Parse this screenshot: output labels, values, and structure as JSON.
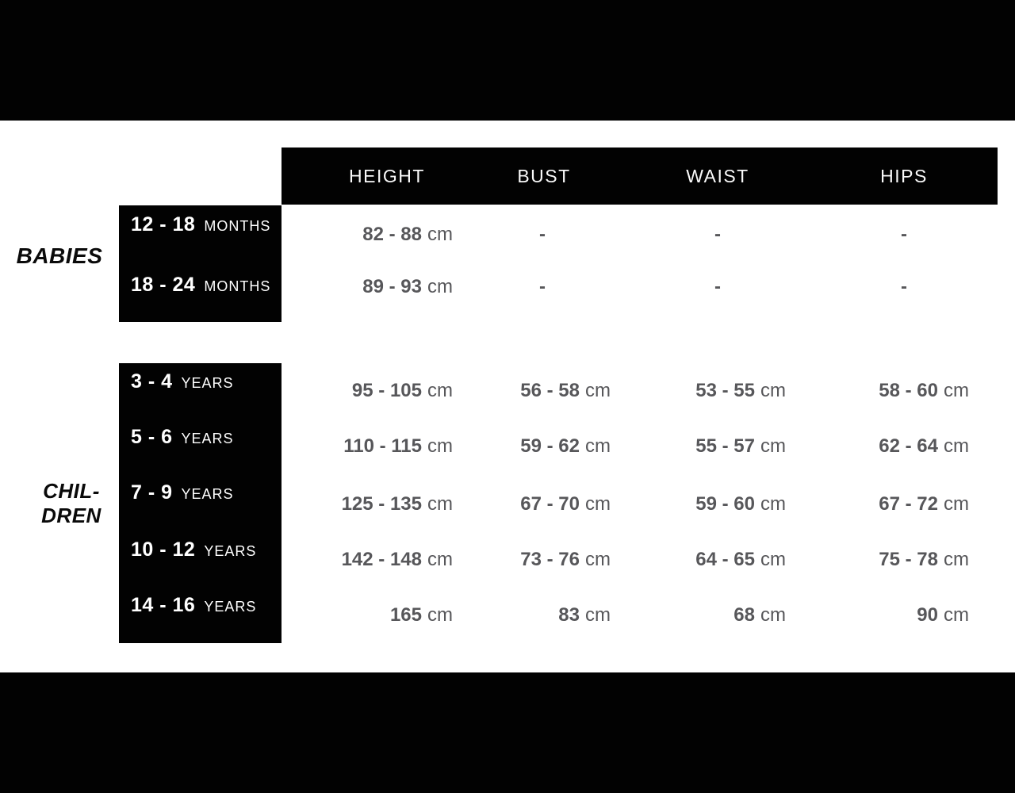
{
  "chart_data": {
    "type": "table",
    "columns": [
      "HEIGHT",
      "BUST",
      "WAIST",
      "HIPS"
    ],
    "measurement_unit": "cm",
    "groups": [
      {
        "group_label": "BABIES",
        "age_unit": "MONTHS",
        "rows": [
          {
            "age": "12 - 18",
            "age_unit": "MONTHS",
            "height": "82 - 88",
            "height_unit": "cm",
            "bust": "-",
            "bust_unit": "",
            "waist": "-",
            "waist_unit": "",
            "hips": "-",
            "hips_unit": ""
          },
          {
            "age": "18 - 24",
            "age_unit": "MONTHS",
            "height": "89 - 93",
            "height_unit": "cm",
            "bust": "-",
            "bust_unit": "",
            "waist": "-",
            "waist_unit": "",
            "hips": "-",
            "hips_unit": ""
          }
        ]
      },
      {
        "group_label_line1": "CHIL-",
        "group_label_line2": "DREN",
        "age_unit": "YEARS",
        "rows": [
          {
            "age": "3 - 4",
            "age_unit": "YEARS",
            "height": "95 - 105",
            "height_unit": "cm",
            "bust": "56 - 58",
            "bust_unit": "cm",
            "waist": "53 - 55",
            "waist_unit": "cm",
            "hips": "58 - 60",
            "hips_unit": "cm"
          },
          {
            "age": "5 - 6",
            "age_unit": "YEARS",
            "height": "110 - 115",
            "height_unit": "cm",
            "bust": "59 - 62",
            "bust_unit": "cm",
            "waist": "55 - 57",
            "waist_unit": "cm",
            "hips": "62 - 64",
            "hips_unit": "cm"
          },
          {
            "age": "7 - 9",
            "age_unit": "YEARS",
            "height": "125 - 135",
            "height_unit": "cm",
            "bust": "67 - 70",
            "bust_unit": "cm",
            "waist": "59 - 60",
            "waist_unit": "cm",
            "hips": "67 - 72",
            "hips_unit": "cm"
          },
          {
            "age": "10 - 12",
            "age_unit": "YEARS",
            "height": "142 - 148",
            "height_unit": "cm",
            "bust": "73 - 76",
            "bust_unit": "cm",
            "waist": "64 - 65",
            "waist_unit": "cm",
            "hips": "75 - 78",
            "hips_unit": "cm"
          },
          {
            "age": "14 - 16",
            "age_unit": "YEARS",
            "height": "165",
            "height_unit": "cm",
            "bust": "83",
            "bust_unit": "cm",
            "waist": "68",
            "waist_unit": "cm",
            "hips": "90",
            "hips_unit": "cm"
          }
        ]
      }
    ],
    "colors": {
      "background": "#ffffff",
      "panel_black": "#020202",
      "header_text": "#fafafa",
      "value_text": "#57575a"
    }
  }
}
